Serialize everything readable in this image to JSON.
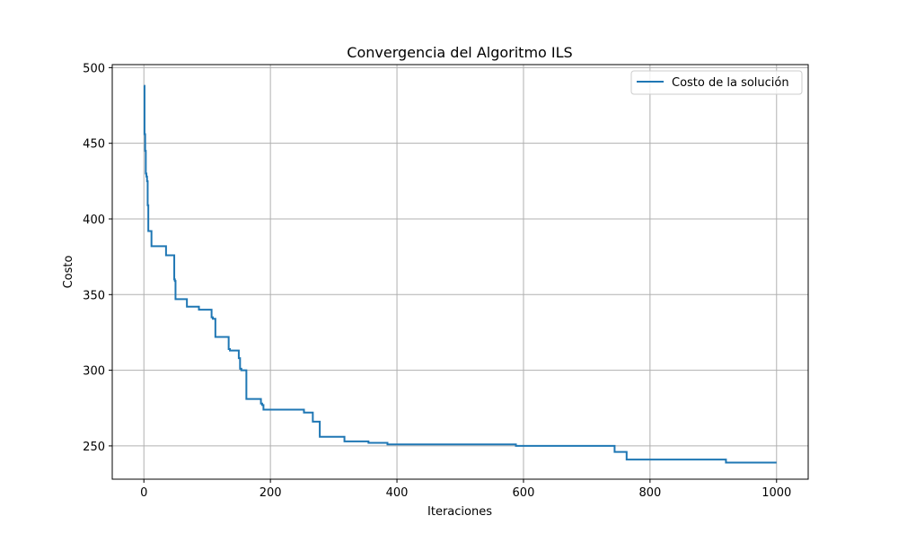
{
  "chart_data": {
    "type": "line",
    "title": "Convergencia del Algoritmo ILS",
    "xlabel": "Iteraciones",
    "ylabel": "Costo",
    "xlim": [
      -50,
      1050
    ],
    "ylim": [
      228,
      502
    ],
    "xticks": [
      0,
      200,
      400,
      600,
      800,
      1000
    ],
    "yticks": [
      250,
      300,
      350,
      400,
      450,
      500
    ],
    "grid": true,
    "legend_position": "top-right",
    "series": [
      {
        "name": "Costo de la solución",
        "color": "#1f77b4",
        "drawstyle": "steps-post",
        "x": [
          0,
          1,
          2,
          3,
          4,
          5,
          6,
          7,
          8,
          12,
          35,
          48,
          49,
          50,
          68,
          87,
          107,
          109,
          113,
          134,
          136,
          150,
          152,
          154,
          160,
          162,
          185,
          187,
          189,
          253,
          267,
          278,
          317,
          355,
          385,
          580,
          588,
          744,
          763,
          920,
          1000
        ],
        "y": [
          488,
          456,
          445,
          430,
          428,
          425,
          409,
          392,
          392,
          382,
          376,
          360,
          359,
          347,
          342,
          340,
          335,
          334,
          322,
          314,
          313,
          308,
          301,
          300,
          300,
          281,
          278,
          277,
          274,
          272,
          266,
          256,
          253,
          252,
          251,
          251,
          250,
          246,
          241,
          239,
          239
        ]
      }
    ]
  }
}
